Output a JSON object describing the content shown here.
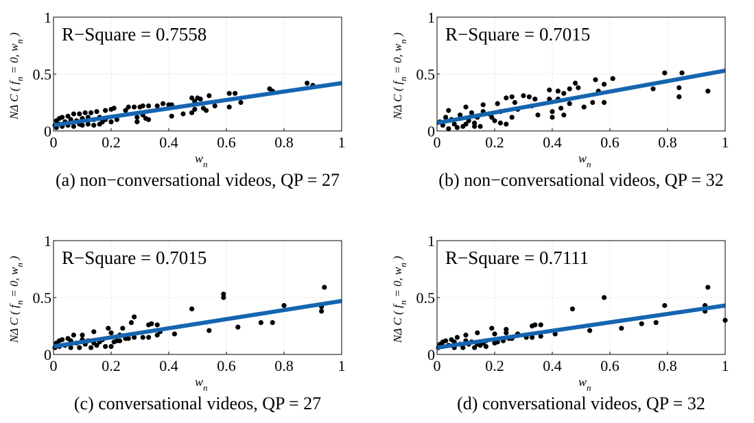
{
  "chart_data": [
    {
      "type": "scatter",
      "caption": "(a) non−conversational videos, QP = 27",
      "annotation": "R−Square = 0.7558",
      "xlabel_parts": [
        "w",
        "n"
      ],
      "ylabel_parts": [
        "NΔ C ( f",
        "n",
        " = 0, w",
        "n",
        " )"
      ],
      "xlim": [
        0,
        1
      ],
      "ylim": [
        0,
        1
      ],
      "xticks": [
        "0",
        "0.2",
        "0.4",
        "0.6",
        "0.8",
        "1"
      ],
      "yticks": [
        "0",
        "0.5",
        "1"
      ],
      "grid": true,
      "point_color": "#000000",
      "fit_color": "#1565b0",
      "fit_line": {
        "x": [
          0,
          1
        ],
        "y": [
          0.05,
          0.42
        ]
      },
      "points": [
        [
          0.88,
          0.42
        ],
        [
          0.9,
          0.4
        ],
        [
          0.75,
          0.37
        ],
        [
          0.76,
          0.35
        ],
        [
          0.61,
          0.33
        ],
        [
          0.63,
          0.33
        ],
        [
          0.61,
          0.21
        ],
        [
          0.65,
          0.25
        ],
        [
          0.54,
          0.31
        ],
        [
          0.48,
          0.29
        ],
        [
          0.5,
          0.29
        ],
        [
          0.51,
          0.28
        ],
        [
          0.49,
          0.26
        ],
        [
          0.52,
          0.2
        ],
        [
          0.53,
          0.18
        ],
        [
          0.56,
          0.22
        ],
        [
          0.48,
          0.16
        ],
        [
          0.49,
          0.19
        ],
        [
          0.45,
          0.15
        ],
        [
          0.41,
          0.13
        ],
        [
          0.4,
          0.23
        ],
        [
          0.41,
          0.23
        ],
        [
          0.38,
          0.24
        ],
        [
          0.36,
          0.22
        ],
        [
          0.33,
          0.22
        ],
        [
          0.31,
          0.22
        ],
        [
          0.3,
          0.21
        ],
        [
          0.28,
          0.21
        ],
        [
          0.26,
          0.21
        ],
        [
          0.25,
          0.18
        ],
        [
          0.29,
          0.12
        ],
        [
          0.29,
          0.08
        ],
        [
          0.31,
          0.14
        ],
        [
          0.33,
          0.1
        ],
        [
          0.32,
          0.11
        ],
        [
          0.21,
          0.2
        ],
        [
          0.2,
          0.19
        ],
        [
          0.18,
          0.18
        ],
        [
          0.17,
          0.08
        ],
        [
          0.22,
          0.1
        ],
        [
          0.2,
          0.08
        ],
        [
          0.15,
          0.17
        ],
        [
          0.13,
          0.16
        ],
        [
          0.11,
          0.16
        ],
        [
          0.09,
          0.15
        ],
        [
          0.07,
          0.15
        ],
        [
          0.05,
          0.13
        ],
        [
          0.03,
          0.12
        ],
        [
          0.02,
          0.11
        ],
        [
          0.01,
          0.09
        ],
        [
          0.005,
          0.05
        ],
        [
          0.01,
          0.03
        ],
        [
          0.03,
          0.04
        ],
        [
          0.05,
          0.05
        ],
        [
          0.07,
          0.04
        ],
        [
          0.09,
          0.06
        ],
        [
          0.1,
          0.05
        ],
        [
          0.12,
          0.06
        ],
        [
          0.14,
          0.05
        ],
        [
          0.16,
          0.06
        ],
        [
          0.04,
          0.08
        ],
        [
          0.06,
          0.1
        ],
        [
          0.08,
          0.09
        ],
        [
          0.1,
          0.11
        ],
        [
          0.12,
          0.12
        ],
        [
          0.14,
          0.1
        ],
        [
          0.02,
          0.06
        ],
        [
          0.16,
          0.12
        ],
        [
          0.18,
          0.1
        ]
      ]
    },
    {
      "type": "scatter",
      "caption": "(b) non−conversational videos, QP = 32",
      "annotation": "R−Square = 0.7015",
      "xlabel_parts": [
        "w",
        "n"
      ],
      "ylabel_parts": [
        "NΔ C ( f",
        "n",
        " = 0, w",
        "n",
        " )"
      ],
      "xlim": [
        0,
        1
      ],
      "ylim": [
        0,
        1
      ],
      "xticks": [
        "0",
        "0.2",
        "0.4",
        "0.6",
        "0.8",
        "1"
      ],
      "yticks": [
        "0",
        "0.5",
        "1"
      ],
      "grid": true,
      "point_color": "#000000",
      "fit_color": "#1565b0",
      "fit_line": {
        "x": [
          0,
          1
        ],
        "y": [
          0.07,
          0.53
        ]
      },
      "points": [
        [
          0.79,
          0.51
        ],
        [
          0.85,
          0.51
        ],
        [
          0.75,
          0.37
        ],
        [
          0.84,
          0.38
        ],
        [
          0.84,
          0.3
        ],
        [
          0.94,
          0.35
        ],
        [
          0.61,
          0.46
        ],
        [
          0.55,
          0.45
        ],
        [
          0.58,
          0.41
        ],
        [
          0.56,
          0.35
        ],
        [
          0.54,
          0.25
        ],
        [
          0.58,
          0.25
        ],
        [
          0.51,
          0.21
        ],
        [
          0.48,
          0.42
        ],
        [
          0.49,
          0.38
        ],
        [
          0.46,
          0.37
        ],
        [
          0.44,
          0.33
        ],
        [
          0.42,
          0.35
        ],
        [
          0.39,
          0.36
        ],
        [
          0.39,
          0.28
        ],
        [
          0.42,
          0.28
        ],
        [
          0.46,
          0.24
        ],
        [
          0.4,
          0.17
        ],
        [
          0.43,
          0.2
        ],
        [
          0.44,
          0.14
        ],
        [
          0.4,
          0.12
        ],
        [
          0.34,
          0.28
        ],
        [
          0.35,
          0.14
        ],
        [
          0.3,
          0.31
        ],
        [
          0.32,
          0.3
        ],
        [
          0.26,
          0.3
        ],
        [
          0.24,
          0.29
        ],
        [
          0.27,
          0.25
        ],
        [
          0.21,
          0.24
        ],
        [
          0.16,
          0.23
        ],
        [
          0.1,
          0.21
        ],
        [
          0.04,
          0.18
        ],
        [
          0.2,
          0.09
        ],
        [
          0.22,
          0.07
        ],
        [
          0.24,
          0.06
        ],
        [
          0.26,
          0.12
        ],
        [
          0.13,
          0.04
        ],
        [
          0.15,
          0.04
        ],
        [
          0.01,
          0.08
        ],
        [
          0.02,
          0.05
        ],
        [
          0.03,
          0.12
        ],
        [
          0.05,
          0.1
        ],
        [
          0.06,
          0.06
        ],
        [
          0.08,
          0.14
        ],
        [
          0.09,
          0.04
        ],
        [
          0.11,
          0.09
        ],
        [
          0.12,
          0.16
        ],
        [
          0.14,
          0.12
        ],
        [
          0.16,
          0.17
        ],
        [
          0.18,
          0.15
        ],
        [
          0.19,
          0.12
        ],
        [
          0.07,
          0.03
        ],
        [
          0.04,
          0.02
        ],
        [
          0.1,
          0.06
        ],
        [
          0.13,
          0.07
        ],
        [
          0.22,
          0.17
        ],
        [
          0.28,
          0.19
        ],
        [
          0.33,
          0.22
        ]
      ]
    },
    {
      "type": "scatter",
      "caption": "(c) conversational videos, QP = 27",
      "annotation": "R−Square = 0.7015",
      "xlabel_parts": [
        "w",
        "n"
      ],
      "ylabel_parts": [
        "NΔ C ( f",
        "n",
        " = 0, w",
        "n",
        " )"
      ],
      "xlim": [
        0,
        1
      ],
      "ylim": [
        0,
        1
      ],
      "xticks": [
        "0",
        "0.2",
        "0.4",
        "0.6",
        "0.8",
        "1"
      ],
      "yticks": [
        "0",
        "0.5",
        "1"
      ],
      "grid": true,
      "point_color": "#000000",
      "fit_color": "#1565b0",
      "fit_line": {
        "x": [
          0,
          1
        ],
        "y": [
          0.07,
          0.47
        ]
      },
      "points": [
        [
          0.94,
          0.59
        ],
        [
          0.93,
          0.42
        ],
        [
          0.93,
          0.38
        ],
        [
          0.8,
          0.43
        ],
        [
          0.59,
          0.53
        ],
        [
          0.59,
          0.5
        ],
        [
          0.48,
          0.4
        ],
        [
          0.54,
          0.21
        ],
        [
          0.64,
          0.24
        ],
        [
          0.72,
          0.28
        ],
        [
          0.76,
          0.28
        ],
        [
          0.42,
          0.18
        ],
        [
          0.37,
          0.2
        ],
        [
          0.36,
          0.26
        ],
        [
          0.36,
          0.17
        ],
        [
          0.34,
          0.27
        ],
        [
          0.33,
          0.26
        ],
        [
          0.33,
          0.15
        ],
        [
          0.31,
          0.15
        ],
        [
          0.28,
          0.33
        ],
        [
          0.27,
          0.28
        ],
        [
          0.28,
          0.15
        ],
        [
          0.26,
          0.14
        ],
        [
          0.24,
          0.23
        ],
        [
          0.23,
          0.17
        ],
        [
          0.19,
          0.23
        ],
        [
          0.2,
          0.19
        ],
        [
          0.2,
          0.07
        ],
        [
          0.18,
          0.07
        ],
        [
          0.22,
          0.12
        ],
        [
          0.14,
          0.2
        ],
        [
          0.1,
          0.17
        ],
        [
          0.01,
          0.1
        ],
        [
          0.02,
          0.07
        ],
        [
          0.03,
          0.13
        ],
        [
          0.04,
          0.08
        ],
        [
          0.05,
          0.14
        ],
        [
          0.06,
          0.06
        ],
        [
          0.07,
          0.17
        ],
        [
          0.08,
          0.1
        ],
        [
          0.09,
          0.06
        ],
        [
          0.11,
          0.09
        ],
        [
          0.12,
          0.12
        ],
        [
          0.13,
          0.06
        ],
        [
          0.15,
          0.08
        ],
        [
          0.16,
          0.11
        ],
        [
          0.005,
          0.06
        ],
        [
          0.02,
          0.12
        ],
        [
          0.06,
          0.12
        ],
        [
          0.1,
          0.13
        ],
        [
          0.14,
          0.1
        ],
        [
          0.17,
          0.13
        ],
        [
          0.21,
          0.11
        ],
        [
          0.23,
          0.12
        ],
        [
          0.25,
          0.14
        ]
      ]
    },
    {
      "type": "scatter",
      "caption": "(d) conversational videos, QP = 32",
      "annotation": "R−Square = 0.7111",
      "xlabel_parts": [
        "w",
        "n"
      ],
      "ylabel_parts": [
        "NΔ C ( f",
        "n",
        " = 0, w",
        "n",
        " )"
      ],
      "xlim": [
        0,
        1
      ],
      "ylim": [
        0,
        1
      ],
      "xticks": [
        "0",
        "0.2",
        "0.4",
        "0.6",
        "0.8",
        "1"
      ],
      "yticks": [
        "0",
        "0.5",
        "1"
      ],
      "grid": true,
      "point_color": "#000000",
      "fit_color": "#1565b0",
      "fit_line": {
        "x": [
          0,
          1
        ],
        "y": [
          0.06,
          0.43
        ]
      },
      "points": [
        [
          0.94,
          0.59
        ],
        [
          0.93,
          0.43
        ],
        [
          0.93,
          0.38
        ],
        [
          1.0,
          0.3
        ],
        [
          0.79,
          0.43
        ],
        [
          0.58,
          0.5
        ],
        [
          0.47,
          0.4
        ],
        [
          0.53,
          0.21
        ],
        [
          0.64,
          0.23
        ],
        [
          0.71,
          0.27
        ],
        [
          0.76,
          0.28
        ],
        [
          0.41,
          0.18
        ],
        [
          0.36,
          0.26
        ],
        [
          0.34,
          0.26
        ],
        [
          0.33,
          0.25
        ],
        [
          0.36,
          0.16
        ],
        [
          0.33,
          0.15
        ],
        [
          0.31,
          0.15
        ],
        [
          0.28,
          0.18
        ],
        [
          0.26,
          0.14
        ],
        [
          0.24,
          0.22
        ],
        [
          0.24,
          0.19
        ],
        [
          0.19,
          0.23
        ],
        [
          0.2,
          0.18
        ],
        [
          0.14,
          0.19
        ],
        [
          0.1,
          0.17
        ],
        [
          0.2,
          0.1
        ],
        [
          0.17,
          0.07
        ],
        [
          0.01,
          0.09
        ],
        [
          0.02,
          0.07
        ],
        [
          0.03,
          0.12
        ],
        [
          0.04,
          0.08
        ],
        [
          0.05,
          0.13
        ],
        [
          0.06,
          0.06
        ],
        [
          0.07,
          0.15
        ],
        [
          0.08,
          0.09
        ],
        [
          0.09,
          0.06
        ],
        [
          0.11,
          0.09
        ],
        [
          0.12,
          0.11
        ],
        [
          0.13,
          0.06
        ],
        [
          0.15,
          0.08
        ],
        [
          0.16,
          0.1
        ],
        [
          0.005,
          0.06
        ],
        [
          0.02,
          0.11
        ],
        [
          0.06,
          0.11
        ],
        [
          0.1,
          0.12
        ],
        [
          0.14,
          0.09
        ],
        [
          0.17,
          0.12
        ],
        [
          0.21,
          0.11
        ],
        [
          0.23,
          0.12
        ],
        [
          0.25,
          0.14
        ]
      ]
    }
  ]
}
